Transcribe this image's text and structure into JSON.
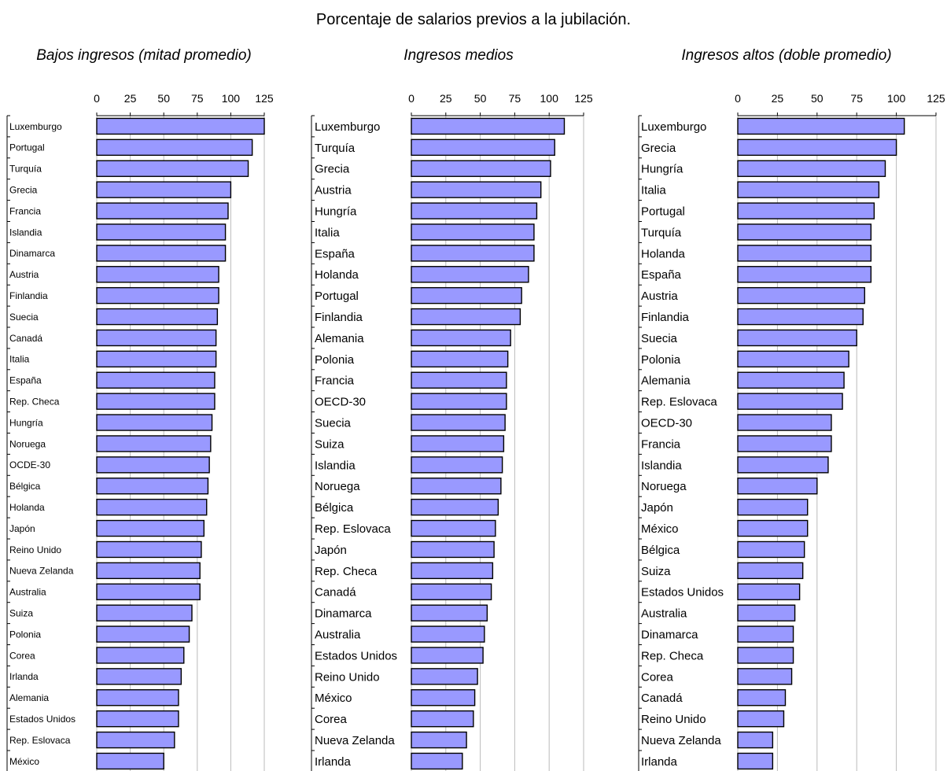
{
  "title": "Porcentaje de salarios previos a la jubilación.",
  "chart_data": [
    {
      "type": "bar",
      "orientation": "horizontal",
      "title": "Bajos ingresos (mitad promedio)",
      "xlim": [
        0,
        125
      ],
      "ticks": [
        "0",
        "25",
        "50",
        "75",
        "100",
        "125"
      ],
      "grid": true,
      "categories": [
        "Luxemburgo",
        "Portugal",
        "Turquía",
        "Grecia",
        "Francia",
        "Islandia",
        "Dinamarca",
        "Austria",
        "Finlandia",
        "Suecia",
        "Canadá",
        "Italia",
        "España",
        "Rep. Checa",
        "Hungría",
        "Noruega",
        "OCDE-30",
        "Bélgica",
        "Holanda",
        "Japón",
        "Reino Unido",
        "Nueva Zelanda",
        "Australia",
        "Suiza",
        "Polonia",
        "Corea",
        "Irlanda",
        "Alemania",
        "Estados Unidos",
        "Rep. Eslovaca",
        "México"
      ],
      "values": [
        125,
        116,
        113,
        100,
        98,
        96,
        96,
        91,
        91,
        90,
        89,
        89,
        88,
        88,
        86,
        85,
        84,
        83,
        82,
        80,
        78,
        77,
        77,
        71,
        69,
        65,
        63,
        61,
        61,
        58,
        50
      ]
    },
    {
      "type": "bar",
      "orientation": "horizontal",
      "title": "Ingresos medios",
      "xlim": [
        0,
        125
      ],
      "ticks": [
        "0",
        "25",
        "50",
        "75",
        "100",
        "125"
      ],
      "grid": true,
      "categories": [
        "Luxemburgo",
        "Turquía",
        "Grecia",
        "Austria",
        "Hungría",
        "Italia",
        "España",
        "Holanda",
        "Portugal",
        "Finlandia",
        "Alemania",
        "Polonia",
        "Francia",
        "OECD-30",
        "Suecia",
        "Suiza",
        "Islandia",
        "Noruega",
        "Bélgica",
        "Rep. Eslovaca",
        "Japón",
        "Rep. Checa",
        "Canadá",
        "Dinamarca",
        "Australia",
        "Estados Unidos",
        "Reino Unido",
        "México",
        "Corea",
        "Nueva Zelanda",
        "Irlanda"
      ],
      "values": [
        111,
        104,
        101,
        94,
        91,
        89,
        89,
        85,
        80,
        79,
        72,
        70,
        69,
        69,
        68,
        67,
        66,
        65,
        63,
        61,
        60,
        59,
        58,
        55,
        53,
        52,
        48,
        46,
        45,
        40,
        37
      ]
    },
    {
      "type": "bar",
      "orientation": "horizontal",
      "title": "Ingresos altos (doble promedio)",
      "xlim": [
        0,
        125
      ],
      "ticks": [
        "0",
        "25",
        "50",
        "75",
        "100",
        "125"
      ],
      "grid": true,
      "categories": [
        "Luxemburgo",
        "Grecia",
        "Hungría",
        "Italia",
        "Portugal",
        "Turquía",
        "Holanda",
        "España",
        "Austria",
        "Finlandia",
        "Suecia",
        "Polonia",
        "Alemania",
        "Rep. Eslovaca",
        "OECD-30",
        "Francia",
        "Islandia",
        "Noruega",
        "Japón",
        "México",
        "Bélgica",
        "Suiza",
        "Estados Unidos",
        "Australia",
        "Dinamarca",
        "Rep. Checa",
        "Corea",
        "Canadá",
        "Reino Unido",
        "Nueva Zelanda",
        "Irlanda"
      ],
      "values": [
        105,
        100,
        93,
        89,
        86,
        84,
        84,
        84,
        80,
        79,
        75,
        70,
        67,
        66,
        59,
        59,
        57,
        50,
        44,
        44,
        42,
        41,
        39,
        36,
        35,
        35,
        34,
        30,
        29,
        22,
        22
      ]
    }
  ],
  "colors": {
    "bar_fill": "#9999ff",
    "bar_stroke": "#000000",
    "grid": "#bbbbbb",
    "axis": "#000000"
  }
}
